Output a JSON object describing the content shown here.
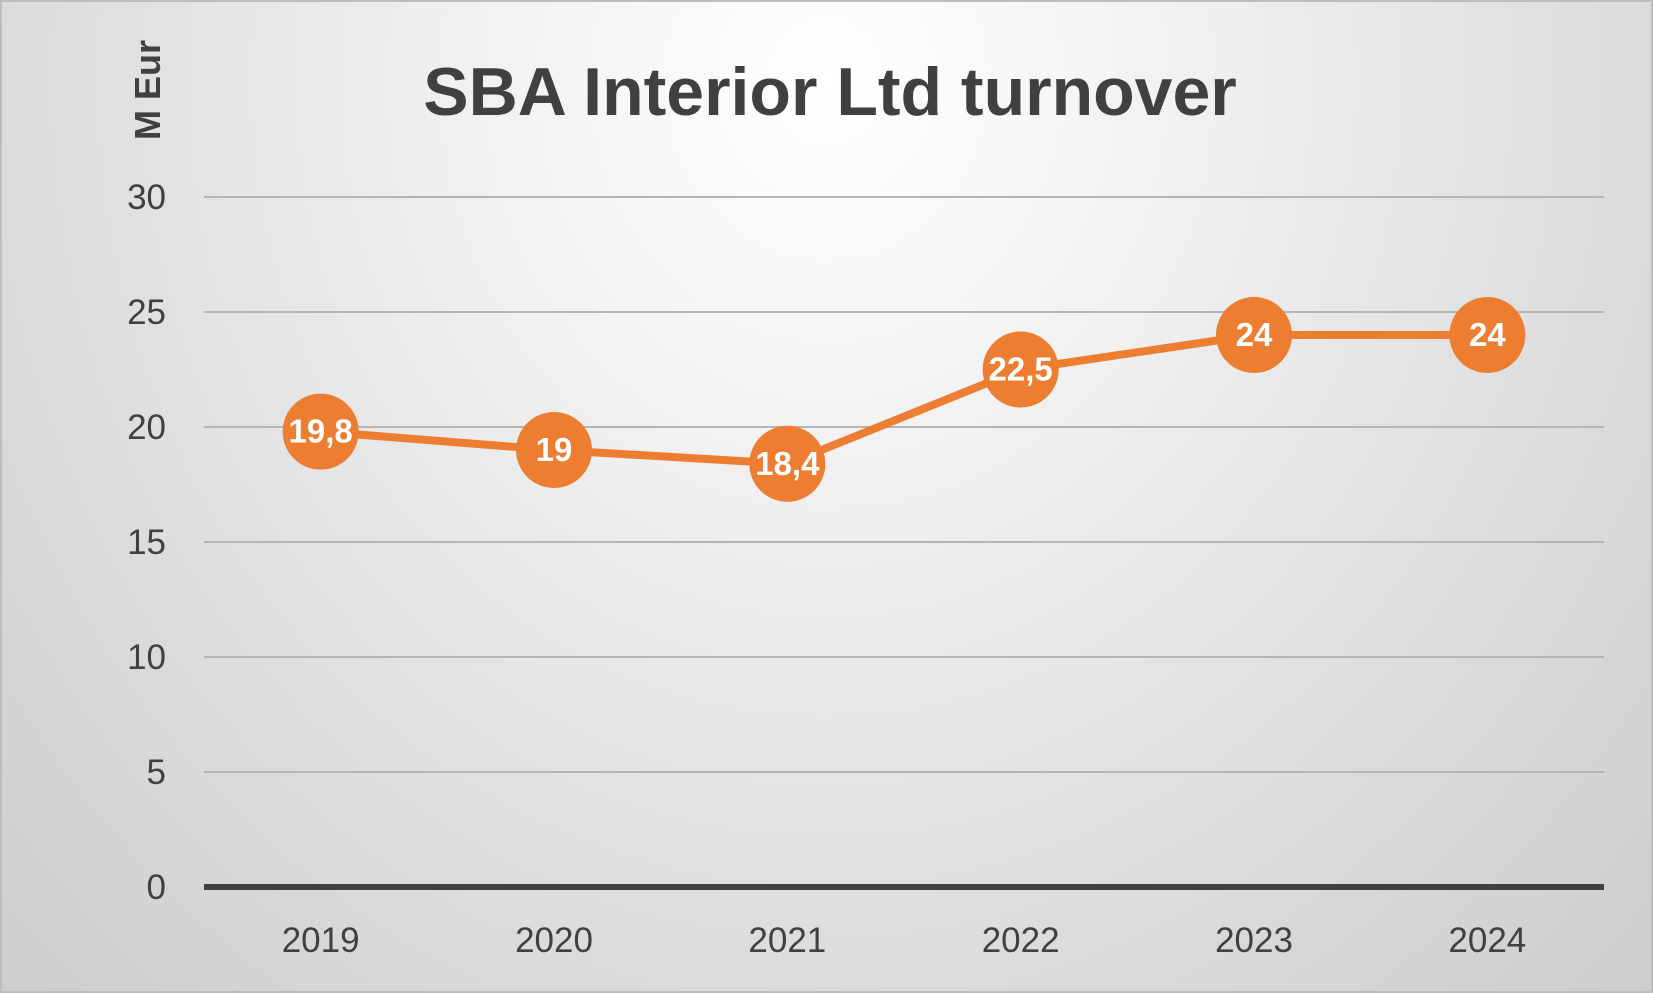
{
  "chart_data": {
    "type": "line",
    "title": "SBA Interior Ltd turnover",
    "ylabel": "M Eur",
    "xlabel": "",
    "categories": [
      "2019",
      "2020",
      "2021",
      "2022",
      "2023",
      "2024"
    ],
    "series": [
      {
        "values": [
          19.8,
          19,
          18.4,
          22.5,
          24,
          24
        ],
        "data_labels": [
          "19,8",
          "19",
          "18,4",
          "22,5",
          "24",
          "24"
        ],
        "color": "#ED7D31"
      }
    ],
    "yticks": [
      "0",
      "5",
      "10",
      "15",
      "20",
      "25",
      "30"
    ],
    "ylim": [
      0,
      30
    ],
    "grid": true,
    "legend": "none",
    "colors": {
      "line": "#ED7D31",
      "gridline": "#b5b5b5",
      "axis": "#404040",
      "text": "#404040"
    }
  }
}
